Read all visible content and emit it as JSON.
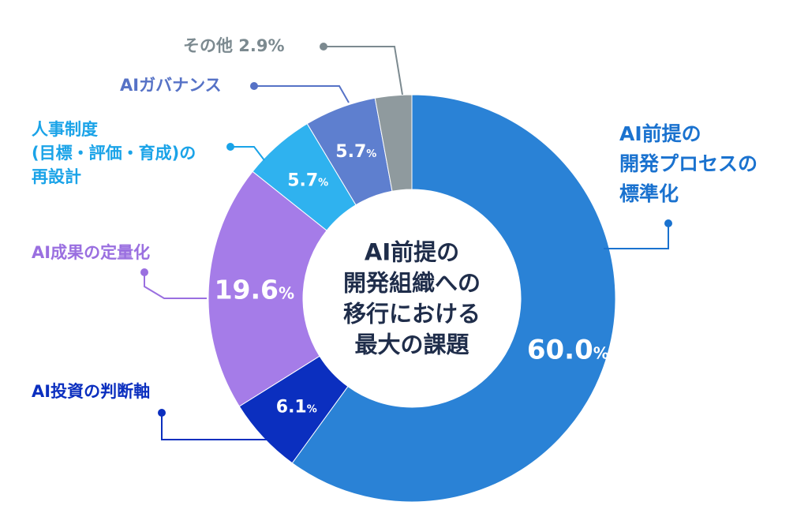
{
  "chart_data": {
    "type": "pie",
    "title": "AI前提の開発組織への移行における最大の課題",
    "title_lines": [
      "AI前提の",
      "開発組織への",
      "移行における",
      "最大の課題"
    ],
    "unit": "%",
    "slices": [
      {
        "label": "AI前提の開発プロセスの標準化",
        "label_lines": [
          "AI前提の",
          "開発プロセスの",
          "標準化"
        ],
        "value": 60.0,
        "value_text": "60.0",
        "color": "#2a82d6"
      },
      {
        "label": "AI投資の判断軸",
        "label_lines": [
          "AI投資の判断軸"
        ],
        "value": 6.1,
        "value_text": "6.1",
        "color": "#0b2fbf"
      },
      {
        "label": "AI成果の定量化",
        "label_lines": [
          "AI成果の定量化"
        ],
        "value": 19.6,
        "value_text": "19.6",
        "color": "#a57ce8"
      },
      {
        "label": "人事制度(目標・評価・育成)の再設計",
        "label_lines": [
          "人事制度",
          "(目標・評価・育成)の",
          "再設計"
        ],
        "value": 5.7,
        "value_text": "5.7",
        "color": "#2fb2ef"
      },
      {
        "label": "AIガバナンス",
        "label_lines": [
          "AIガバナンス"
        ],
        "value": 5.7,
        "value_text": "5.7",
        "color": "#5e7fcf"
      },
      {
        "label": "その他",
        "label_lines": [
          "その他 2.9%"
        ],
        "value": 2.9,
        "value_text": "",
        "color": "#8f9a9e"
      }
    ]
  }
}
